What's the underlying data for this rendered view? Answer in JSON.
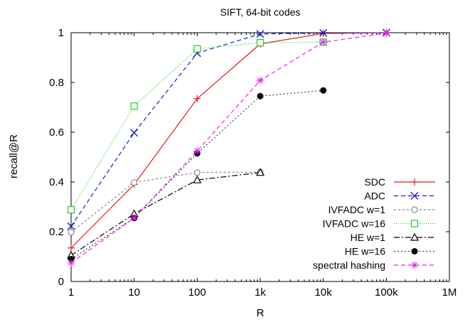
{
  "chart_data": {
    "type": "line",
    "title": "SIFT, 64-bit codes",
    "xlabel": "R",
    "ylabel": "recall@R",
    "xscale": "log",
    "xlim": [
      1,
      1000000
    ],
    "ylim": [
      0,
      1
    ],
    "x_ticks": [
      {
        "value": 1,
        "label": "1"
      },
      {
        "value": 10,
        "label": "10"
      },
      {
        "value": 100,
        "label": "100"
      },
      {
        "value": 1000,
        "label": "1k"
      },
      {
        "value": 10000,
        "label": "10k"
      },
      {
        "value": 100000,
        "label": "100k"
      },
      {
        "value": 1000000,
        "label": "1M"
      }
    ],
    "y_ticks": [
      {
        "value": 0,
        "label": "0"
      },
      {
        "value": 0.2,
        "label": "0.2"
      },
      {
        "value": 0.4,
        "label": "0.4"
      },
      {
        "value": 0.6,
        "label": "0.6"
      },
      {
        "value": 0.8,
        "label": "0.8"
      },
      {
        "value": 1,
        "label": "1"
      }
    ],
    "grid": false,
    "legend_position": "bottom-right",
    "series": [
      {
        "name": "SDC",
        "color": "#e41a1c",
        "dash": "",
        "marker": "plus",
        "x": [
          1,
          10,
          100,
          1000,
          10000,
          100000
        ],
        "y": [
          0.135,
          0.39,
          0.735,
          0.955,
          0.997,
          1.0
        ]
      },
      {
        "name": "ADC",
        "color": "#1a1acc",
        "dash": "6,4",
        "marker": "x",
        "x": [
          1,
          10,
          100,
          1000,
          10000,
          100000
        ],
        "y": [
          0.222,
          0.598,
          0.918,
          0.995,
          0.999,
          1.0
        ]
      },
      {
        "name": "IVFADC w=1",
        "color": "#888888",
        "dash": "3,3",
        "marker": "open-circle",
        "x": [
          1,
          10,
          100,
          1000
        ],
        "y": [
          0.198,
          0.398,
          0.438,
          0.44
        ]
      },
      {
        "name": "IVFADC w=16",
        "color": "#22cc22",
        "dash": "1,2",
        "marker": "open-square",
        "x": [
          1,
          10,
          100,
          1000,
          10000
        ],
        "y": [
          0.288,
          0.705,
          0.935,
          0.96,
          0.962
        ]
      },
      {
        "name": "HE w=1",
        "color": "#000000",
        "dash": "8,3,2,3",
        "marker": "open-triangle",
        "x": [
          1,
          10,
          100,
          1000
        ],
        "y": [
          0.105,
          0.272,
          0.408,
          0.438
        ]
      },
      {
        "name": "HE w=16",
        "color": "#444444",
        "dash": "2,3",
        "marker": "filled-circle",
        "x": [
          1,
          10,
          100,
          1000,
          10000
        ],
        "y": [
          0.09,
          0.255,
          0.515,
          0.745,
          0.768
        ]
      },
      {
        "name": "spectral hashing",
        "color": "#ee22ee",
        "dash": "6,4",
        "marker": "asterisk",
        "x": [
          1,
          10,
          100,
          1000,
          10000,
          100000
        ],
        "y": [
          0.075,
          0.255,
          0.525,
          0.808,
          0.962,
          0.998
        ]
      }
    ]
  }
}
